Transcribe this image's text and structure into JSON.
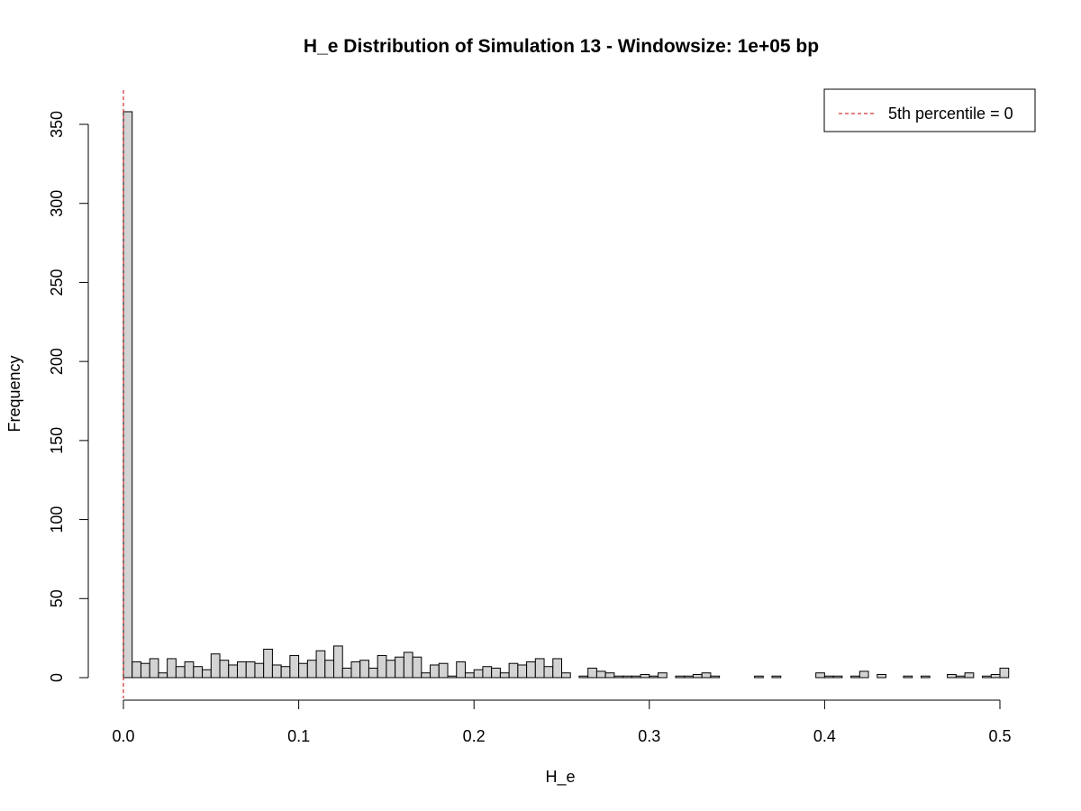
{
  "chart_data": {
    "type": "bar",
    "title": "H_e Distribution of Simulation 13 - Windowsize: 1e+05 bp",
    "xlabel": "H_e",
    "ylabel": "Frequency",
    "xlim": [
      0,
      0.5
    ],
    "ylim": [
      0,
      360
    ],
    "xticks": [
      "0.0",
      "0.1",
      "0.2",
      "0.3",
      "0.4",
      "0.5"
    ],
    "yticks": [
      "0",
      "50",
      "100",
      "150",
      "200",
      "250",
      "300",
      "350"
    ],
    "bin_width": 0.005,
    "bin_start": 0,
    "values": [
      358,
      10,
      9,
      12,
      3,
      12,
      7,
      10,
      7,
      5,
      15,
      11,
      8,
      10,
      10,
      9,
      18,
      8,
      7,
      14,
      9,
      11,
      17,
      11,
      20,
      6,
      10,
      11,
      6,
      14,
      11,
      13,
      16,
      13,
      3,
      8,
      9,
      1,
      10,
      3,
      5,
      7,
      6,
      3,
      9,
      8,
      10,
      12,
      7,
      12,
      3,
      0,
      1,
      6,
      4,
      3,
      1,
      1,
      1,
      2,
      1,
      3,
      0,
      1,
      1,
      2,
      3,
      1,
      0,
      0,
      0,
      0,
      1,
      0,
      1,
      0,
      0,
      0,
      0,
      3,
      1,
      1,
      0,
      1,
      4,
      0,
      2,
      0,
      0,
      1,
      0,
      1,
      0,
      0,
      2,
      1,
      3,
      0,
      1,
      2,
      6
    ],
    "bar_fill": "#d3d3d3",
    "bar_stroke": "#000000",
    "vline": {
      "x": 0,
      "color": "#cc0000",
      "style": "dashed"
    },
    "legend": {
      "position": "top-right",
      "entries": [
        {
          "label": "5th percentile = 0",
          "color": "#cc0000",
          "style": "dashed"
        }
      ]
    }
  }
}
